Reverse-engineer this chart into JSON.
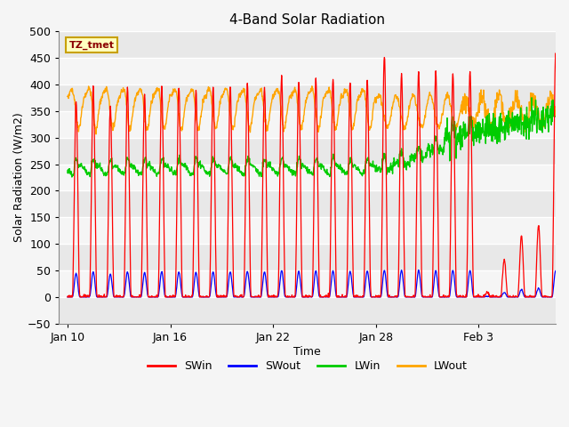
{
  "title": "4-Band Solar Radiation",
  "xlabel": "Time",
  "ylabel": "Solar Radiation (W/m2)",
  "ylim": [
    -50,
    500
  ],
  "annotation_text": "TZ_tmet",
  "annotation_color": "#8B0000",
  "annotation_bg": "#FFFFC0",
  "annotation_border": "#C8A000",
  "colors": {
    "SWin": "#FF0000",
    "SWout": "#0000FF",
    "LWin": "#00CC00",
    "LWout": "#FFA500"
  },
  "stripe_light": "#F5F5F5",
  "stripe_dark": "#E8E8E8",
  "xtick_labels": [
    "Jan 10",
    "Jan 16",
    "Jan 22",
    "Jan 28",
    "Feb 3"
  ],
  "xtick_positions": [
    0,
    6,
    12,
    18,
    24
  ],
  "n_days": 29,
  "pts_per_day": 48
}
